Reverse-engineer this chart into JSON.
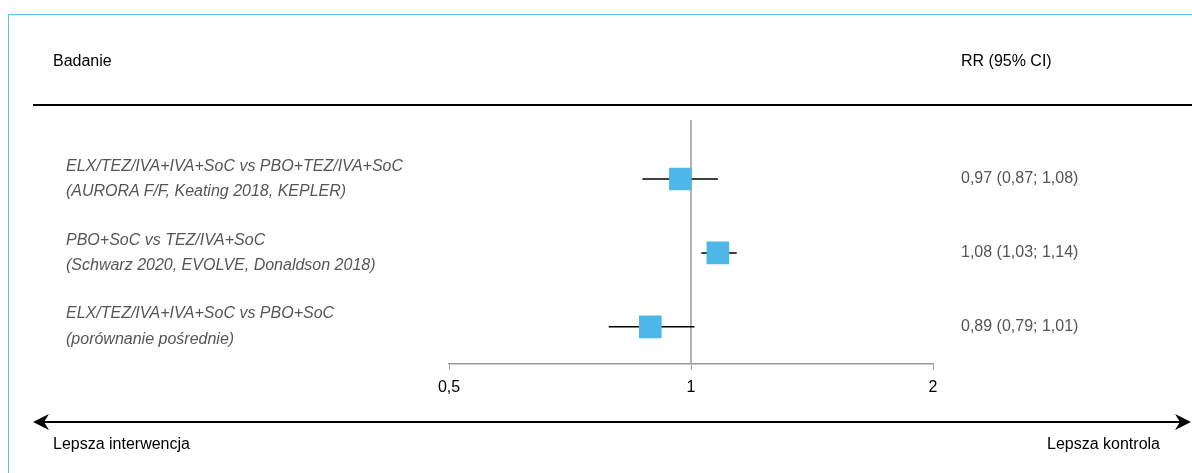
{
  "chart_data": {
    "type": "scatter",
    "orientation": "horizontal",
    "categories": [
      "ELX/TEZ/IVA+IVA+SoC vs PBO+TEZ/IVA+SoC\n(AURORA F/F, Keating 2018, KEPLER)",
      "PBO+SoC vs TEZ/IVA+SoC\n(Schwarz 2020, EVOLVE, Donaldson 2018)",
      "ELX/TEZ/IVA+IVA+SoC vs PBO+SoC\n(porównanie pośrednie)"
    ],
    "values": [
      0.97,
      1.08,
      0.89
    ],
    "errors": [
      [
        0.87,
        1.08
      ],
      [
        1.03,
        1.14
      ],
      [
        0.79,
        1.01
      ]
    ],
    "value_labels": [
      "0,97 (0,87; 1,08)",
      "1,08 (1,03; 1,14)",
      "0,89 (0,79; 1,01)"
    ],
    "color": "#4db8e8",
    "marker": "square",
    "log": "x",
    "xlim": [
      0.5,
      2
    ],
    "xticks": [
      {
        "value": 0.5,
        "label": "0,5"
      },
      1,
      2
    ],
    "ref_lines": [
      {
        "axis": "x",
        "value": 1,
        "color": "#999999"
      }
    ],
    "annotations": [
      "Badanie",
      "RR (95% CI)",
      "Lepsza interwencja",
      "Lepsza kontrola"
    ],
    "grid": false,
    "legend": false
  }
}
